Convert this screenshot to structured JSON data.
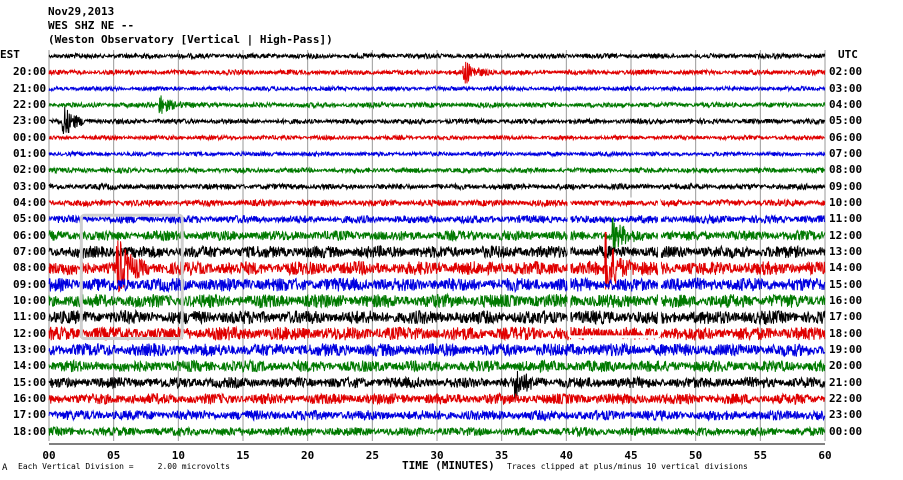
{
  "header": {
    "date": "Nov29,2013",
    "station": "WES SHZ NE --",
    "observatory": "(Weston Observatory [Vertical | High-Pass])"
  },
  "axes": {
    "left_timezone": "EST",
    "right_timezone": "UTC",
    "xlabel": "TIME (MINUTES)"
  },
  "footer": {
    "scale_note": "Each Vertical Division =     2.00 microvolts",
    "clip_note": "Traces clipped at plus/minus 10 vertical divisions",
    "corner_mark": "A"
  },
  "colors": {
    "trace_cycle": [
      "#000000",
      "#e00000",
      "#0000e0",
      "#007a00"
    ],
    "grid": "#9a9a9a",
    "box": "#e8e8e8"
  },
  "chart_data": {
    "type": "line",
    "subtype": "seismogram-helicorder",
    "x": [
      0,
      5,
      10,
      15,
      20,
      25,
      30,
      35,
      40,
      45,
      50,
      55,
      60
    ],
    "xlim": [
      0,
      60
    ],
    "x_tick_labels": [
      "00",
      "05",
      "10",
      "15",
      "20",
      "25",
      "30",
      "35",
      "40",
      "45",
      "50",
      "55",
      "60"
    ],
    "rows": [
      {
        "local": "",
        "utc": "",
        "amplitude": 0.35
      },
      {
        "local": "20:00",
        "utc": "02:00",
        "amplitude": 0.35
      },
      {
        "local": "21:00",
        "utc": "03:00",
        "amplitude": 0.3
      },
      {
        "local": "22:00",
        "utc": "04:00",
        "amplitude": 0.35
      },
      {
        "local": "23:00",
        "utc": "05:00",
        "amplitude": 0.35
      },
      {
        "local": "00:00",
        "utc": "06:00",
        "amplitude": 0.3
      },
      {
        "local": "01:00",
        "utc": "07:00",
        "amplitude": 0.3
      },
      {
        "local": "02:00",
        "utc": "08:00",
        "amplitude": 0.35
      },
      {
        "local": "03:00",
        "utc": "09:00",
        "amplitude": 0.4
      },
      {
        "local": "04:00",
        "utc": "10:00",
        "amplitude": 0.45
      },
      {
        "local": "05:00",
        "utc": "11:00",
        "amplitude": 0.55
      },
      {
        "local": "06:00",
        "utc": "12:00",
        "amplitude": 0.7
      },
      {
        "local": "07:00",
        "utc": "13:00",
        "amplitude": 0.85
      },
      {
        "local": "08:00",
        "utc": "14:00",
        "amplitude": 0.95
      },
      {
        "local": "09:00",
        "utc": "15:00",
        "amplitude": 0.95
      },
      {
        "local": "10:00",
        "utc": "16:00",
        "amplitude": 0.95
      },
      {
        "local": "11:00",
        "utc": "17:00",
        "amplitude": 0.95
      },
      {
        "local": "12:00",
        "utc": "18:00",
        "amplitude": 0.95
      },
      {
        "local": "13:00",
        "utc": "19:00",
        "amplitude": 0.9
      },
      {
        "local": "14:00",
        "utc": "20:00",
        "amplitude": 0.8
      },
      {
        "local": "15:00",
        "utc": "21:00",
        "amplitude": 0.75
      },
      {
        "local": "16:00",
        "utc": "22:00",
        "amplitude": 0.75
      },
      {
        "local": "17:00",
        "utc": "23:00",
        "amplitude": 0.7
      },
      {
        "local": "18:00",
        "utc": "00:00",
        "amplitude": 0.6
      }
    ],
    "events": [
      {
        "row": 4,
        "minute": 1,
        "amplitude": 2.2
      },
      {
        "row": 1,
        "minute": 32,
        "amplitude": 1.6
      },
      {
        "row": 3,
        "minute": 8.5,
        "amplitude": 1.4
      },
      {
        "row": 13,
        "minute": 5.2,
        "amplitude": 4.0
      },
      {
        "row": 13,
        "minute": 43.0,
        "amplitude": 4.2
      },
      {
        "row": 11,
        "minute": 43.5,
        "amplitude": 2.0
      },
      {
        "row": 20,
        "minute": 36,
        "amplitude": 1.6
      }
    ],
    "highlight_boxes": [
      {
        "minute_start": 2.5,
        "minute_end": 10.3,
        "row_start": 10,
        "row_end": 17.3
      },
      {
        "minute_start": 40.2,
        "minute_end": 47.2,
        "row_start": 9,
        "row_end": 17.2
      }
    ]
  }
}
